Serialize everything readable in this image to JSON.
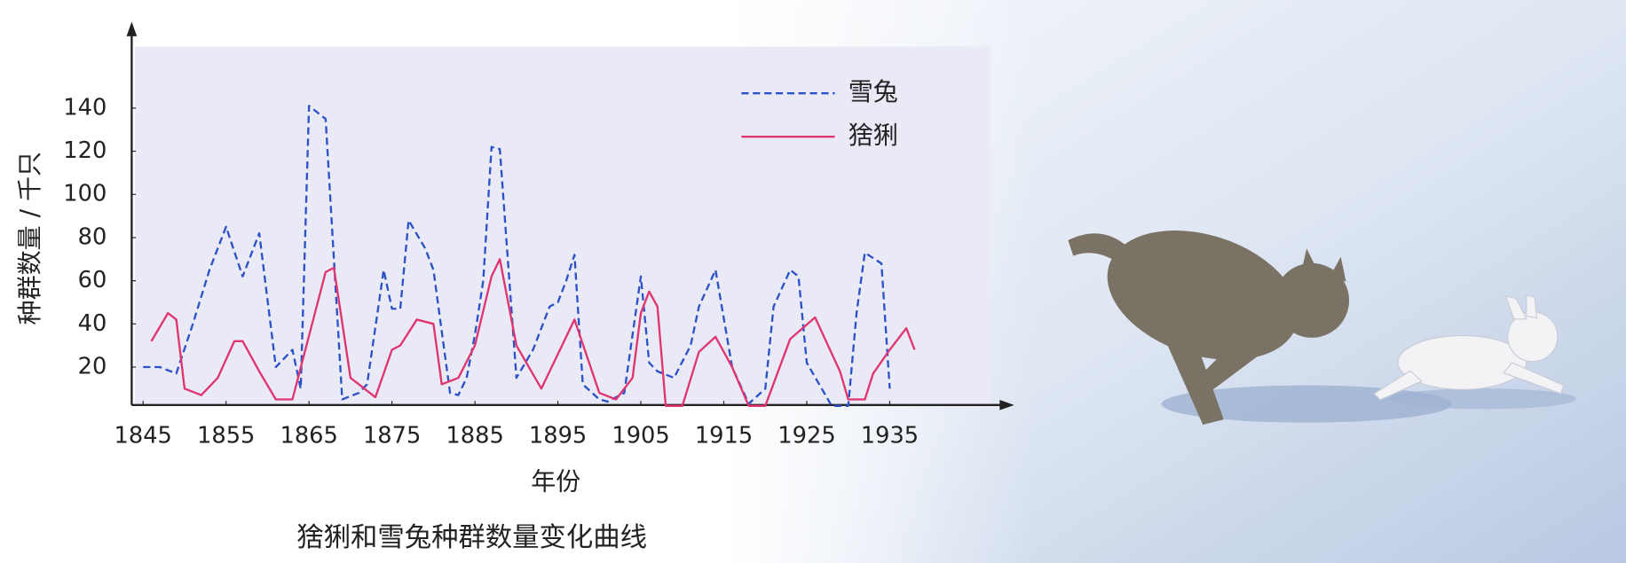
{
  "chart_data": {
    "type": "line",
    "caption": "猞猁和雪兔种群数量变化曲线",
    "xlabel": "年份",
    "ylabel": "种群数量 / 千只",
    "xlim": [
      1844,
      1950
    ],
    "xticks": [
      1845,
      1855,
      1865,
      1875,
      1885,
      1895,
      1905,
      1915,
      1925,
      1935
    ],
    "ylim": [
      0,
      180
    ],
    "yticks": [
      20,
      40,
      60,
      80,
      100,
      120,
      140
    ],
    "series": [
      {
        "name": "雪兔",
        "color": "#2d52c8",
        "dash": true,
        "x": [
          1845,
          1847,
          1849,
          1851,
          1853,
          1855,
          1857,
          1859,
          1861,
          1863,
          1864,
          1865,
          1867,
          1869,
          1871,
          1872,
          1874,
          1875,
          1876,
          1877,
          1879,
          1880,
          1882,
          1883,
          1884,
          1885,
          1886,
          1887,
          1888,
          1890,
          1892,
          1894,
          1895,
          1896,
          1897,
          1898,
          1900,
          1901,
          1903,
          1905,
          1906,
          1907,
          1909,
          1911,
          1912,
          1914,
          1916,
          1918,
          1920,
          1921,
          1923,
          1924,
          1925,
          1928,
          1930,
          1931,
          1932,
          1934,
          1935
        ],
        "values": [
          20,
          20,
          17,
          40,
          65,
          85,
          62,
          82,
          20,
          28,
          10,
          141,
          135,
          5,
          8,
          12,
          65,
          47,
          47,
          88,
          75,
          65,
          8,
          7,
          15,
          35,
          60,
          122,
          121,
          15,
          28,
          48,
          50,
          60,
          72,
          12,
          5,
          4,
          8,
          62,
          22,
          18,
          15,
          30,
          48,
          65,
          20,
          3,
          10,
          48,
          65,
          62,
          22,
          2,
          2,
          45,
          73,
          68,
          10
        ]
      },
      {
        "name": "猞猁",
        "color": "#e0356e",
        "dash": false,
        "x": [
          1846,
          1848,
          1849,
          1850,
          1852,
          1854,
          1856,
          1857,
          1859,
          1861,
          1863,
          1867,
          1868,
          1870,
          1871,
          1873,
          1875,
          1876,
          1878,
          1880,
          1881,
          1883,
          1885,
          1887,
          1888,
          1890,
          1893,
          1897,
          1900,
          1902,
          1904,
          1905,
          1906,
          1907,
          1908,
          1910,
          1912,
          1914,
          1916,
          1918,
          1920,
          1923,
          1926,
          1929,
          1930,
          1932,
          1933,
          1935,
          1937,
          1938
        ],
        "values": [
          32,
          45,
          42,
          10,
          7,
          15,
          32,
          32,
          18,
          5,
          5,
          64,
          66,
          15,
          12,
          6,
          28,
          30,
          42,
          40,
          12,
          15,
          30,
          62,
          70,
          30,
          10,
          42,
          8,
          5,
          15,
          45,
          55,
          48,
          2,
          2,
          27,
          34,
          20,
          2,
          2,
          33,
          43,
          18,
          5,
          5,
          17,
          28,
          38,
          28
        ]
      }
    ]
  }
}
